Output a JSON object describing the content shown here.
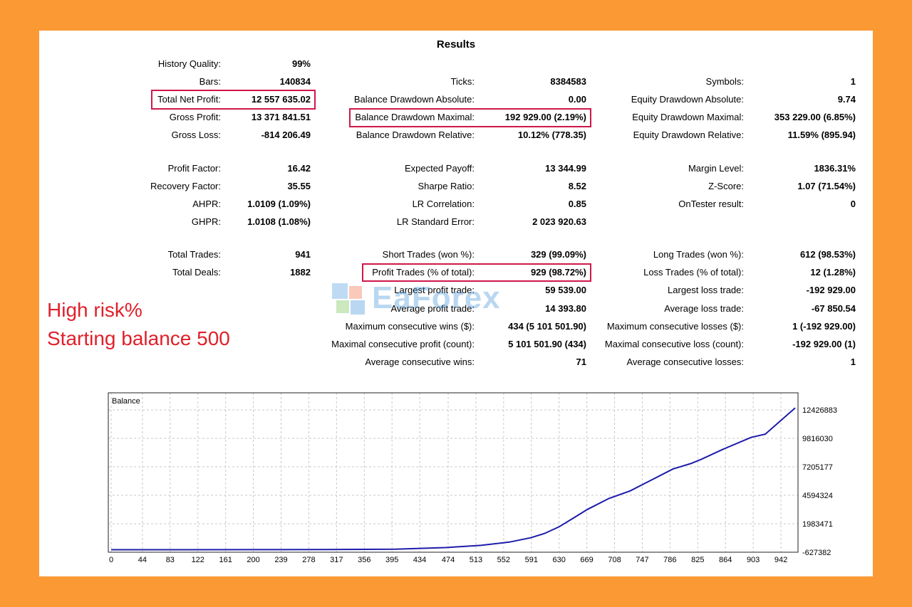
{
  "title": "Results",
  "stats": {
    "col1": [
      {
        "label": "History Quality:",
        "value": "99%"
      },
      {
        "label": "Bars:",
        "value": "140834"
      },
      {
        "label": "Total Net Profit:",
        "value": "12 557 635.02"
      },
      {
        "label": "Gross Profit:",
        "value": "13 371 841.51"
      },
      {
        "label": "Gross Loss:",
        "value": "-814 206.49"
      },
      {
        "label": "Profit Factor:",
        "value": "16.42"
      },
      {
        "label": "Recovery Factor:",
        "value": "35.55"
      },
      {
        "label": "AHPR:",
        "value": "1.0109 (1.09%)"
      },
      {
        "label": "GHPR:",
        "value": "1.0108 (1.08%)"
      },
      {
        "label": "Total Trades:",
        "value": "941"
      },
      {
        "label": "Total Deals:",
        "value": "1882"
      }
    ],
    "col2": [
      {
        "label": "Ticks:",
        "value": "8384583"
      },
      {
        "label": "Balance Drawdown Absolute:",
        "value": "0.00"
      },
      {
        "label": "Balance Drawdown Maximal:",
        "value": "192 929.00 (2.19%)"
      },
      {
        "label": "Balance Drawdown Relative:",
        "value": "10.12% (778.35)"
      },
      {
        "label": "Expected Payoff:",
        "value": "13 344.99"
      },
      {
        "label": "Sharpe Ratio:",
        "value": "8.52"
      },
      {
        "label": "LR Correlation:",
        "value": "0.85"
      },
      {
        "label": "LR Standard Error:",
        "value": "2 023 920.63"
      },
      {
        "label": "Short Trades (won %):",
        "value": "329 (99.09%)"
      },
      {
        "label": "Profit Trades (% of total):",
        "value": "929 (98.72%)"
      },
      {
        "label": "Largest profit trade:",
        "value": "59 539.00"
      },
      {
        "label": "Average profit trade:",
        "value": "14 393.80"
      },
      {
        "label": "Maximum consecutive wins ($):",
        "value": "434 (5 101 501.90)"
      },
      {
        "label": "Maximal consecutive profit (count):",
        "value": "5 101 501.90 (434)"
      },
      {
        "label": "Average consecutive wins:",
        "value": "71"
      }
    ],
    "col3": [
      {
        "label": "Symbols:",
        "value": "1"
      },
      {
        "label": "Equity Drawdown Absolute:",
        "value": "9.74"
      },
      {
        "label": "Equity Drawdown Maximal:",
        "value": "353 229.00 (6.85%)"
      },
      {
        "label": "Equity Drawdown Relative:",
        "value": "11.59% (895.94)"
      },
      {
        "label": "Margin Level:",
        "value": "1836.31%"
      },
      {
        "label": "Z-Score:",
        "value": "1.07 (71.54%)"
      },
      {
        "label": "OnTester result:",
        "value": "0"
      },
      {
        "label": "Long Trades (won %):",
        "value": "612 (98.53%)"
      },
      {
        "label": "Loss Trades (% of total):",
        "value": "12 (1.28%)"
      },
      {
        "label": "Largest loss trade:",
        "value": "-192 929.00"
      },
      {
        "label": "Average loss trade:",
        "value": "-67 850.54"
      },
      {
        "label": "Maximum consecutive losses ($):",
        "value": "1 (-192 929.00)"
      },
      {
        "label": "Maximal consecutive loss (count):",
        "value": "-192 929.00 (1)"
      },
      {
        "label": "Average consecutive losses:",
        "value": "1"
      }
    ]
  },
  "annotation": {
    "line1": "High risk%",
    "line2": "Starting balance 500",
    "highlight_color": "#d0174a",
    "text_color": "#e0202a"
  },
  "watermark": "EaForex",
  "chart_data": {
    "type": "line",
    "title": "Balance",
    "x_ticks": [
      0,
      44,
      83,
      122,
      161,
      200,
      239,
      278,
      317,
      356,
      395,
      434,
      474,
      513,
      552,
      591,
      630,
      669,
      708,
      747,
      786,
      825,
      864,
      903,
      942
    ],
    "y_ticks": [
      12426883,
      9816030,
      7205177,
      4594324,
      1983471,
      -627382
    ],
    "xlim": [
      0,
      962
    ],
    "ylim": [
      -627382,
      12426883
    ],
    "line_color": "#1c1caa",
    "series": [
      {
        "x": [
          0,
          100,
          200,
          300,
          400,
          470,
          520,
          560,
          590,
          610,
          630,
          650,
          670,
          700,
          730,
          760,
          790,
          800,
          815,
          830,
          860,
          900,
          920,
          962
        ],
        "y": [
          -400000,
          -398000,
          -395000,
          -385000,
          -350000,
          -200000,
          0,
          300000,
          700000,
          1100000,
          1700000,
          2500000,
          3300000,
          4300000,
          5000000,
          6000000,
          7000000,
          7200000,
          7500000,
          7900000,
          8800000,
          9900000,
          10200000,
          12600000
        ]
      }
    ]
  }
}
